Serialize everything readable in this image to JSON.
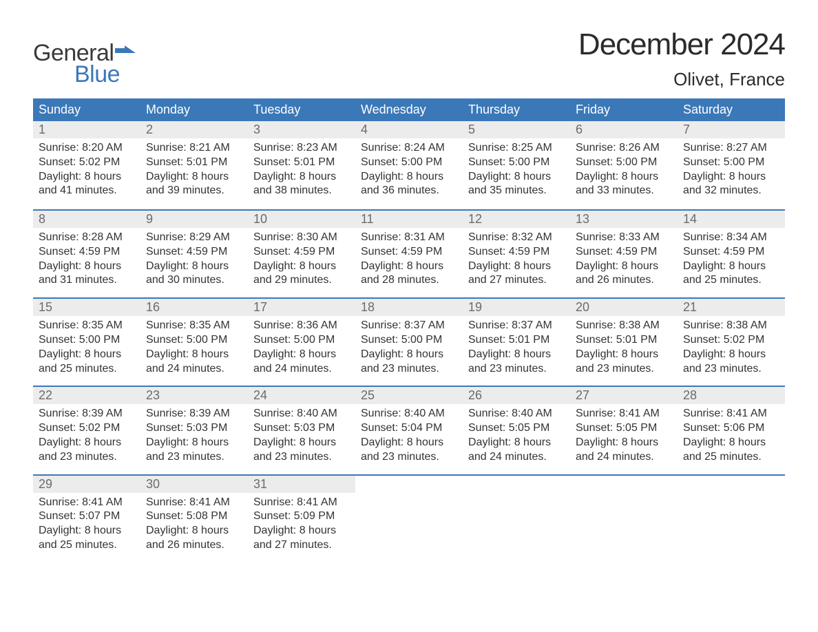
{
  "brand": {
    "word1": "General",
    "word2": "Blue",
    "flag_color": "#3b78b8"
  },
  "title": "December 2024",
  "location": "Olivet, France",
  "colors": {
    "header_bg": "#3b78b8",
    "header_text": "#ffffff",
    "daynum_bg": "#ececec",
    "daynum_text": "#6b6b6b",
    "body_text": "#333333",
    "week_border": "#3b78b8",
    "page_bg": "#ffffff"
  },
  "typography": {
    "title_fontsize": 44,
    "location_fontsize": 26,
    "dow_fontsize": 18,
    "daynum_fontsize": 18,
    "body_fontsize": 16
  },
  "days_of_week": [
    "Sunday",
    "Monday",
    "Tuesday",
    "Wednesday",
    "Thursday",
    "Friday",
    "Saturday"
  ],
  "weeks": [
    [
      {
        "n": "1",
        "sunrise": "Sunrise: 8:20 AM",
        "sunset": "Sunset: 5:02 PM",
        "dl1": "Daylight: 8 hours",
        "dl2": "and 41 minutes."
      },
      {
        "n": "2",
        "sunrise": "Sunrise: 8:21 AM",
        "sunset": "Sunset: 5:01 PM",
        "dl1": "Daylight: 8 hours",
        "dl2": "and 39 minutes."
      },
      {
        "n": "3",
        "sunrise": "Sunrise: 8:23 AM",
        "sunset": "Sunset: 5:01 PM",
        "dl1": "Daylight: 8 hours",
        "dl2": "and 38 minutes."
      },
      {
        "n": "4",
        "sunrise": "Sunrise: 8:24 AM",
        "sunset": "Sunset: 5:00 PM",
        "dl1": "Daylight: 8 hours",
        "dl2": "and 36 minutes."
      },
      {
        "n": "5",
        "sunrise": "Sunrise: 8:25 AM",
        "sunset": "Sunset: 5:00 PM",
        "dl1": "Daylight: 8 hours",
        "dl2": "and 35 minutes."
      },
      {
        "n": "6",
        "sunrise": "Sunrise: 8:26 AM",
        "sunset": "Sunset: 5:00 PM",
        "dl1": "Daylight: 8 hours",
        "dl2": "and 33 minutes."
      },
      {
        "n": "7",
        "sunrise": "Sunrise: 8:27 AM",
        "sunset": "Sunset: 5:00 PM",
        "dl1": "Daylight: 8 hours",
        "dl2": "and 32 minutes."
      }
    ],
    [
      {
        "n": "8",
        "sunrise": "Sunrise: 8:28 AM",
        "sunset": "Sunset: 4:59 PM",
        "dl1": "Daylight: 8 hours",
        "dl2": "and 31 minutes."
      },
      {
        "n": "9",
        "sunrise": "Sunrise: 8:29 AM",
        "sunset": "Sunset: 4:59 PM",
        "dl1": "Daylight: 8 hours",
        "dl2": "and 30 minutes."
      },
      {
        "n": "10",
        "sunrise": "Sunrise: 8:30 AM",
        "sunset": "Sunset: 4:59 PM",
        "dl1": "Daylight: 8 hours",
        "dl2": "and 29 minutes."
      },
      {
        "n": "11",
        "sunrise": "Sunrise: 8:31 AM",
        "sunset": "Sunset: 4:59 PM",
        "dl1": "Daylight: 8 hours",
        "dl2": "and 28 minutes."
      },
      {
        "n": "12",
        "sunrise": "Sunrise: 8:32 AM",
        "sunset": "Sunset: 4:59 PM",
        "dl1": "Daylight: 8 hours",
        "dl2": "and 27 minutes."
      },
      {
        "n": "13",
        "sunrise": "Sunrise: 8:33 AM",
        "sunset": "Sunset: 4:59 PM",
        "dl1": "Daylight: 8 hours",
        "dl2": "and 26 minutes."
      },
      {
        "n": "14",
        "sunrise": "Sunrise: 8:34 AM",
        "sunset": "Sunset: 4:59 PM",
        "dl1": "Daylight: 8 hours",
        "dl2": "and 25 minutes."
      }
    ],
    [
      {
        "n": "15",
        "sunrise": "Sunrise: 8:35 AM",
        "sunset": "Sunset: 5:00 PM",
        "dl1": "Daylight: 8 hours",
        "dl2": "and 25 minutes."
      },
      {
        "n": "16",
        "sunrise": "Sunrise: 8:35 AM",
        "sunset": "Sunset: 5:00 PM",
        "dl1": "Daylight: 8 hours",
        "dl2": "and 24 minutes."
      },
      {
        "n": "17",
        "sunrise": "Sunrise: 8:36 AM",
        "sunset": "Sunset: 5:00 PM",
        "dl1": "Daylight: 8 hours",
        "dl2": "and 24 minutes."
      },
      {
        "n": "18",
        "sunrise": "Sunrise: 8:37 AM",
        "sunset": "Sunset: 5:00 PM",
        "dl1": "Daylight: 8 hours",
        "dl2": "and 23 minutes."
      },
      {
        "n": "19",
        "sunrise": "Sunrise: 8:37 AM",
        "sunset": "Sunset: 5:01 PM",
        "dl1": "Daylight: 8 hours",
        "dl2": "and 23 minutes."
      },
      {
        "n": "20",
        "sunrise": "Sunrise: 8:38 AM",
        "sunset": "Sunset: 5:01 PM",
        "dl1": "Daylight: 8 hours",
        "dl2": "and 23 minutes."
      },
      {
        "n": "21",
        "sunrise": "Sunrise: 8:38 AM",
        "sunset": "Sunset: 5:02 PM",
        "dl1": "Daylight: 8 hours",
        "dl2": "and 23 minutes."
      }
    ],
    [
      {
        "n": "22",
        "sunrise": "Sunrise: 8:39 AM",
        "sunset": "Sunset: 5:02 PM",
        "dl1": "Daylight: 8 hours",
        "dl2": "and 23 minutes."
      },
      {
        "n": "23",
        "sunrise": "Sunrise: 8:39 AM",
        "sunset": "Sunset: 5:03 PM",
        "dl1": "Daylight: 8 hours",
        "dl2": "and 23 minutes."
      },
      {
        "n": "24",
        "sunrise": "Sunrise: 8:40 AM",
        "sunset": "Sunset: 5:03 PM",
        "dl1": "Daylight: 8 hours",
        "dl2": "and 23 minutes."
      },
      {
        "n": "25",
        "sunrise": "Sunrise: 8:40 AM",
        "sunset": "Sunset: 5:04 PM",
        "dl1": "Daylight: 8 hours",
        "dl2": "and 23 minutes."
      },
      {
        "n": "26",
        "sunrise": "Sunrise: 8:40 AM",
        "sunset": "Sunset: 5:05 PM",
        "dl1": "Daylight: 8 hours",
        "dl2": "and 24 minutes."
      },
      {
        "n": "27",
        "sunrise": "Sunrise: 8:41 AM",
        "sunset": "Sunset: 5:05 PM",
        "dl1": "Daylight: 8 hours",
        "dl2": "and 24 minutes."
      },
      {
        "n": "28",
        "sunrise": "Sunrise: 8:41 AM",
        "sunset": "Sunset: 5:06 PM",
        "dl1": "Daylight: 8 hours",
        "dl2": "and 25 minutes."
      }
    ],
    [
      {
        "n": "29",
        "sunrise": "Sunrise: 8:41 AM",
        "sunset": "Sunset: 5:07 PM",
        "dl1": "Daylight: 8 hours",
        "dl2": "and 25 minutes."
      },
      {
        "n": "30",
        "sunrise": "Sunrise: 8:41 AM",
        "sunset": "Sunset: 5:08 PM",
        "dl1": "Daylight: 8 hours",
        "dl2": "and 26 minutes."
      },
      {
        "n": "31",
        "sunrise": "Sunrise: 8:41 AM",
        "sunset": "Sunset: 5:09 PM",
        "dl1": "Daylight: 8 hours",
        "dl2": "and 27 minutes."
      },
      {
        "empty": true
      },
      {
        "empty": true
      },
      {
        "empty": true
      },
      {
        "empty": true
      }
    ]
  ]
}
